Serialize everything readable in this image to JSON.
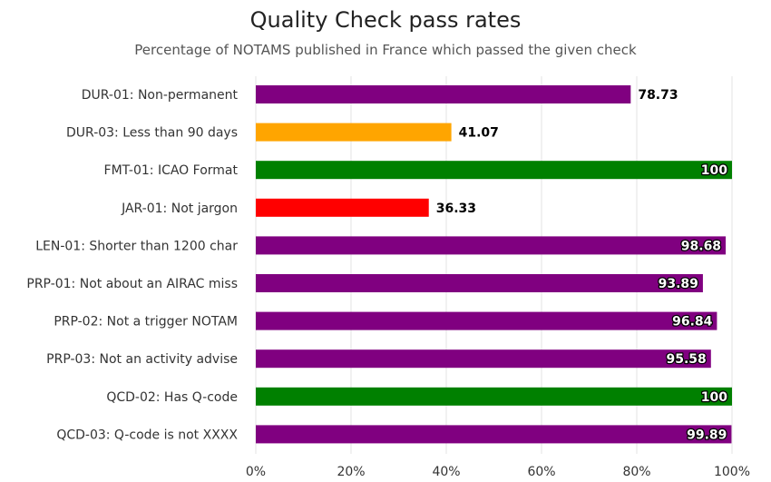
{
  "chart_data": {
    "type": "bar",
    "orientation": "horizontal",
    "title": "Quality Check pass rates",
    "subtitle": "Percentage of NOTAMS published in France which passed the given check",
    "categories": [
      "DUR-01: Non-permanent",
      "DUR-03: Less than 90 days",
      "FMT-01: ICAO Format",
      "JAR-01: Not jargon",
      "LEN-01: Shorter than 1200 char",
      "PRP-01: Not about an AIRAC miss",
      "PRP-02: Not a trigger NOTAM",
      "PRP-03: Not an activity advise",
      "QCD-02: Has Q-code",
      "QCD-03: Q-code is not XXXX"
    ],
    "values": [
      78.73,
      41.07,
      100,
      36.33,
      98.68,
      93.89,
      96.84,
      95.58,
      100,
      99.89
    ],
    "value_labels": [
      "78.73",
      "41.07",
      "100",
      "36.33",
      "98.68",
      "93.89",
      "96.84",
      "95.58",
      "100",
      "99.89"
    ],
    "colors": [
      "#800080",
      "#FFA500",
      "#008000",
      "#FF0000",
      "#800080",
      "#800080",
      "#800080",
      "#800080",
      "#008000",
      "#800080"
    ],
    "xlim": [
      0,
      100
    ],
    "xticks": [
      0,
      20,
      40,
      60,
      80,
      100
    ],
    "xtick_labels": [
      "0%",
      "20%",
      "40%",
      "60%",
      "80%",
      "100%"
    ],
    "grid": "vertical",
    "legend": "none"
  }
}
